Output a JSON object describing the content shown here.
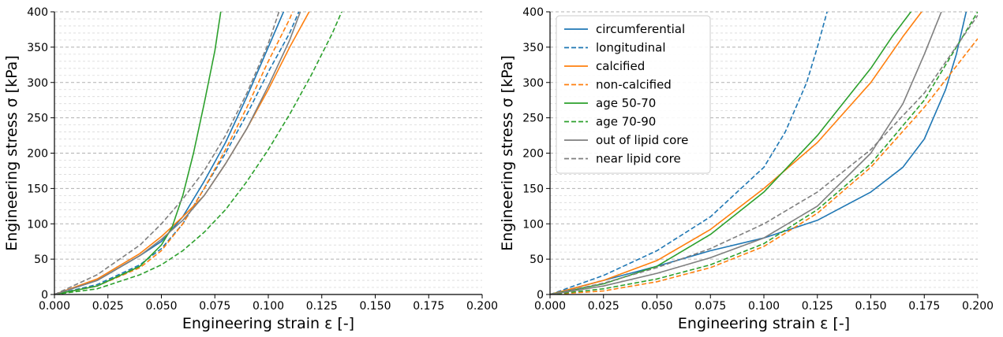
{
  "chart_data": [
    {
      "type": "line",
      "xlabel": "Engineering strain ε [-]",
      "ylabel": "Engineering stress σ [kPa]",
      "xlim": [
        0,
        0.2
      ],
      "ylim": [
        0,
        400
      ],
      "xticks": [
        "0.000",
        "0.025",
        "0.050",
        "0.075",
        "0.100",
        "0.125",
        "0.150",
        "0.175",
        "0.200"
      ],
      "yticks": [
        "0",
        "50",
        "100",
        "150",
        "200",
        "250",
        "300",
        "350",
        "400"
      ],
      "grid": "horizontal dashed major and minor",
      "legend": "none",
      "series": [
        {
          "name": "circumferential",
          "color": "#1f77b4",
          "dash": "solid",
          "x": [
            0,
            0.02,
            0.04,
            0.05,
            0.06,
            0.07,
            0.08,
            0.09,
            0.1,
            0.105,
            0.11
          ],
          "y": [
            0,
            20,
            55,
            75,
            110,
            160,
            215,
            280,
            350,
            385,
            420
          ]
        },
        {
          "name": "longitudinal",
          "color": "#1f77b4",
          "dash": "dashed",
          "x": [
            0,
            0.02,
            0.04,
            0.05,
            0.06,
            0.07,
            0.08,
            0.09,
            0.1,
            0.11,
            0.115
          ],
          "y": [
            0,
            14,
            42,
            65,
            100,
            150,
            200,
            255,
            315,
            370,
            405
          ]
        },
        {
          "name": "calcified",
          "color": "#ff7f0e",
          "dash": "solid",
          "x": [
            0,
            0.02,
            0.04,
            0.05,
            0.06,
            0.07,
            0.08,
            0.09,
            0.1,
            0.11,
            0.12
          ],
          "y": [
            0,
            22,
            58,
            82,
            110,
            140,
            185,
            235,
            290,
            350,
            405
          ]
        },
        {
          "name": "non-calcified",
          "color": "#ff7f0e",
          "dash": "dashed",
          "x": [
            0,
            0.02,
            0.04,
            0.05,
            0.06,
            0.07,
            0.08,
            0.09,
            0.1,
            0.11,
            0.112
          ],
          "y": [
            0,
            12,
            38,
            62,
            100,
            150,
            205,
            265,
            330,
            390,
            405
          ]
        },
        {
          "name": "age 50-70",
          "color": "#2ca02c",
          "dash": "solid",
          "x": [
            0,
            0.02,
            0.04,
            0.05,
            0.055,
            0.06,
            0.065,
            0.07,
            0.075,
            0.078
          ],
          "y": [
            0,
            12,
            40,
            70,
            95,
            140,
            200,
            270,
            345,
            405
          ]
        },
        {
          "name": "age 70-90",
          "color": "#2ca02c",
          "dash": "dashed",
          "x": [
            0,
            0.02,
            0.04,
            0.05,
            0.06,
            0.07,
            0.08,
            0.09,
            0.1,
            0.11,
            0.12,
            0.13,
            0.135
          ],
          "y": [
            0,
            8,
            28,
            42,
            62,
            88,
            120,
            160,
            205,
            255,
            310,
            370,
            405
          ]
        },
        {
          "name": "out of lipid core",
          "color": "#7f7f7f",
          "dash": "solid",
          "x": [
            0,
            0.02,
            0.04,
            0.05,
            0.06,
            0.07,
            0.08,
            0.09,
            0.1,
            0.11,
            0.115
          ],
          "y": [
            0,
            20,
            55,
            78,
            105,
            140,
            185,
            235,
            295,
            360,
            400
          ]
        },
        {
          "name": "near lipid core",
          "color": "#7f7f7f",
          "dash": "dashed",
          "x": [
            0,
            0.02,
            0.04,
            0.05,
            0.06,
            0.07,
            0.08,
            0.09,
            0.1,
            0.105
          ],
          "y": [
            0,
            28,
            70,
            100,
            135,
            175,
            225,
            285,
            355,
            400
          ]
        }
      ]
    },
    {
      "type": "line",
      "xlabel": "Engineering strain ε [-]",
      "ylabel": "Engineering stress σ [kPa]",
      "xlim": [
        0,
        0.2
      ],
      "ylim": [
        0,
        400
      ],
      "xticks": [
        "0.000",
        "0.025",
        "0.050",
        "0.075",
        "0.100",
        "0.125",
        "0.150",
        "0.175",
        "0.200"
      ],
      "yticks": [
        "0",
        "50",
        "100",
        "150",
        "200",
        "250",
        "300",
        "350",
        "400"
      ],
      "grid": "horizontal dashed major and minor",
      "legend": "top-left",
      "series": [
        {
          "name": "circumferential",
          "color": "#1f77b4",
          "dash": "solid",
          "x": [
            0,
            0.025,
            0.05,
            0.075,
            0.1,
            0.125,
            0.15,
            0.165,
            0.175,
            0.185,
            0.19,
            0.195
          ],
          "y": [
            0,
            20,
            40,
            62,
            80,
            105,
            145,
            180,
            220,
            290,
            340,
            405
          ]
        },
        {
          "name": "longitudinal",
          "color": "#1f77b4",
          "dash": "dashed",
          "x": [
            0,
            0.025,
            0.05,
            0.075,
            0.1,
            0.11,
            0.12,
            0.125,
            0.13
          ],
          "y": [
            0,
            27,
            62,
            110,
            180,
            230,
            300,
            350,
            405
          ]
        },
        {
          "name": "calcified",
          "color": "#ff7f0e",
          "dash": "solid",
          "x": [
            0,
            0.025,
            0.05,
            0.075,
            0.1,
            0.125,
            0.15,
            0.165,
            0.175
          ],
          "y": [
            0,
            20,
            48,
            92,
            150,
            215,
            300,
            365,
            405
          ]
        },
        {
          "name": "non-calcified",
          "color": "#ff7f0e",
          "dash": "dashed",
          "x": [
            0,
            0.025,
            0.05,
            0.075,
            0.1,
            0.125,
            0.15,
            0.175,
            0.2
          ],
          "y": [
            0,
            5,
            18,
            38,
            68,
            115,
            180,
            265,
            362
          ]
        },
        {
          "name": "age 50-70",
          "color": "#2ca02c",
          "dash": "solid",
          "x": [
            0,
            0.025,
            0.05,
            0.075,
            0.1,
            0.125,
            0.15,
            0.16,
            0.17
          ],
          "y": [
            0,
            15,
            40,
            85,
            145,
            225,
            320,
            365,
            405
          ]
        },
        {
          "name": "age 70-90",
          "color": "#2ca02c",
          "dash": "dashed",
          "x": [
            0,
            0.025,
            0.05,
            0.075,
            0.1,
            0.125,
            0.15,
            0.175,
            0.2
          ],
          "y": [
            0,
            8,
            22,
            42,
            72,
            120,
            185,
            275,
            400
          ]
        },
        {
          "name": "out of lipid core",
          "color": "#7f7f7f",
          "dash": "solid",
          "x": [
            0,
            0.025,
            0.05,
            0.075,
            0.1,
            0.125,
            0.15,
            0.165,
            0.175,
            0.183
          ],
          "y": [
            0,
            12,
            30,
            52,
            80,
            125,
            200,
            270,
            340,
            400
          ]
        },
        {
          "name": "near lipid core",
          "color": "#7f7f7f",
          "dash": "dashed",
          "x": [
            0,
            0.025,
            0.05,
            0.075,
            0.1,
            0.125,
            0.15,
            0.175,
            0.2
          ],
          "y": [
            0,
            16,
            38,
            65,
            100,
            145,
            205,
            285,
            395
          ]
        }
      ]
    }
  ]
}
